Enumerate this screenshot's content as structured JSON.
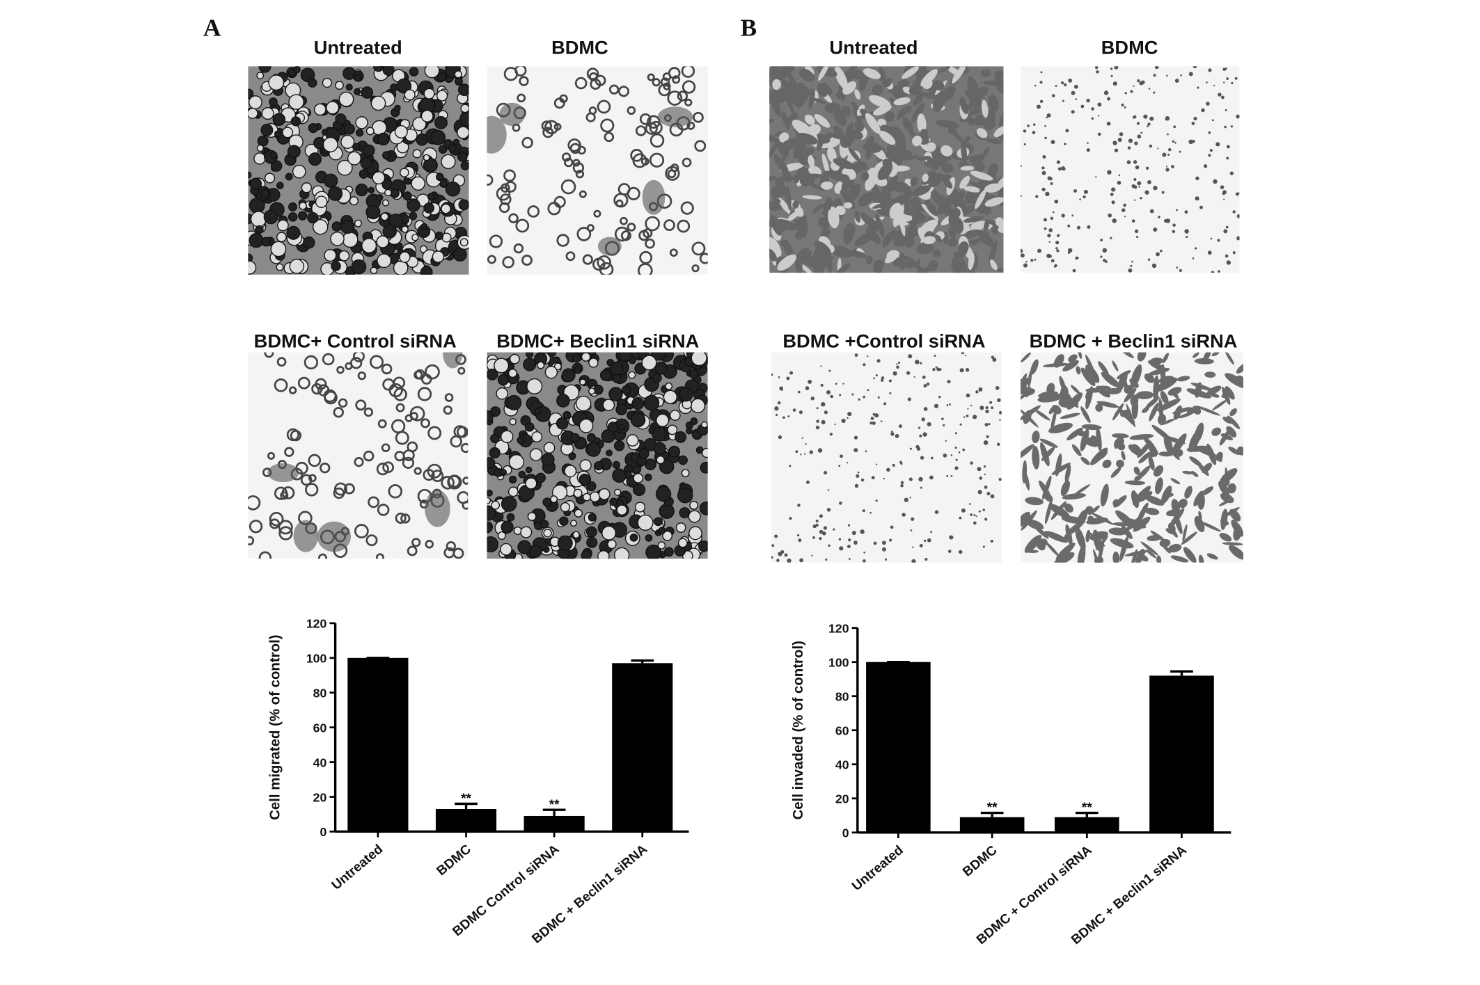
{
  "panels": [
    {
      "label": "A",
      "images": [
        "Untreated",
        "BDMC",
        "BDMC+ Control siRNA",
        "BDMC+ Beclin1 siRNA"
      ]
    },
    {
      "label": "B",
      "images": [
        "Untreated",
        "BDMC",
        "BDMC +Control siRNA",
        "BDMC + Beclin1 siRNA"
      ]
    }
  ],
  "chart_data": [
    {
      "type": "bar",
      "y_label": "Cell migrated (% of control)",
      "categories": [
        "Untreated",
        "BDMC",
        "BDMC  Control siRNA",
        "BDMC + Beclin1 siRNA"
      ],
      "values": [
        100,
        13,
        9,
        97
      ],
      "errors": [
        0,
        3,
        3.5,
        1.5
      ],
      "annotations": [
        null,
        "**",
        "**",
        null
      ],
      "color": "#000000",
      "ylim": [
        0,
        120
      ],
      "yticks": [
        0,
        20,
        40,
        60,
        80,
        100,
        120
      ]
    },
    {
      "type": "bar",
      "y_label": "Cell invaded (% of control)",
      "categories": [
        "Untreated",
        "BDMC",
        "BDMC + Control siRNA",
        "BDMC + Beclin1 siRNA"
      ],
      "values": [
        100,
        9,
        9,
        92
      ],
      "errors": [
        0,
        2.5,
        2.5,
        2.5
      ],
      "annotations": [
        null,
        "**",
        "**",
        null
      ],
      "color": "#000000",
      "ylim": [
        0,
        120
      ],
      "yticks": [
        0,
        20,
        40,
        60,
        80,
        100,
        120
      ]
    }
  ]
}
